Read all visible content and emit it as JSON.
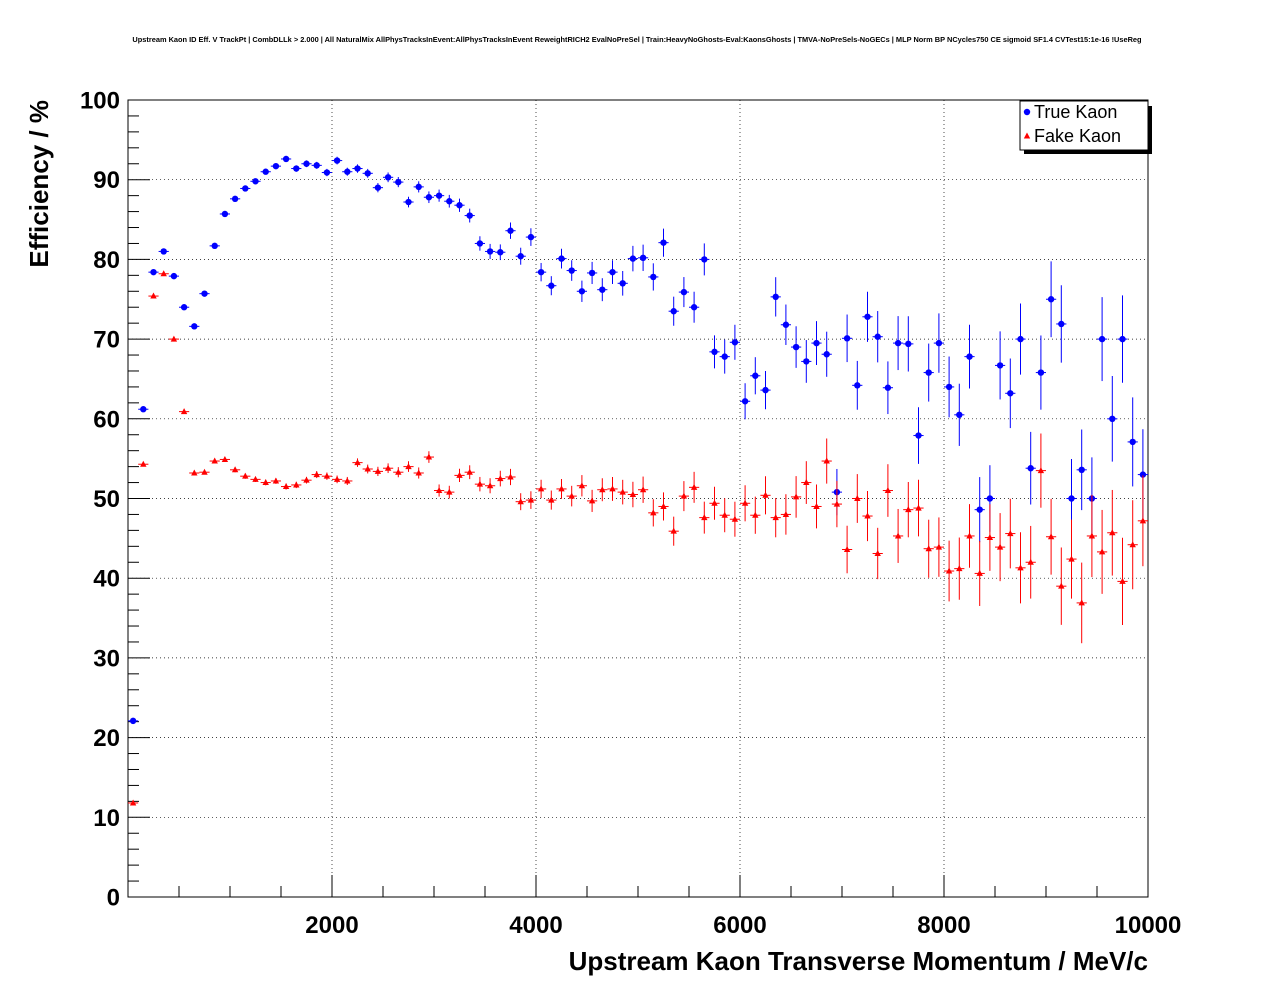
{
  "chart_data": {
    "type": "scatter",
    "title": "Upstream Kaon ID Eff. V TrackPt | CombDLLk > 2.000 | All NaturalMix AllPhysTracksInEvent:AllPhysTracksInEvent ReweightRICH2 EvalNoPreSel | Train:HeavyNoGhosts-Eval:KaonsGhosts | TMVA-NoPreSels-NoGECs | MLP Norm BP NCycles750 CE sigmoid SF1.4 CVTest15:1e-16 !UseReg",
    "xlabel": "Upstream Kaon Transverse Momentum / MeV/c",
    "ylabel": "Efficiency / %",
    "xlim": [
      0,
      10000
    ],
    "ylim": [
      0,
      100
    ],
    "x_ticks": [
      2000,
      4000,
      6000,
      8000,
      10000
    ],
    "y_ticks": [
      0,
      10,
      20,
      30,
      40,
      50,
      60,
      70,
      80,
      90,
      100
    ],
    "grid": true,
    "legend_position": "top-right",
    "series": [
      {
        "name": "True Kaon",
        "color": "#0000ff",
        "marker": "circle",
        "x": [
          50,
          150,
          250,
          350,
          450,
          550,
          650,
          750,
          850,
          950,
          1050,
          1150,
          1250,
          1350,
          1450,
          1550,
          1650,
          1750,
          1850,
          1950,
          2050,
          2150,
          2250,
          2350,
          2450,
          2550,
          2650,
          2750,
          2850,
          2950,
          3050,
          3150,
          3250,
          3350,
          3450,
          3550,
          3650,
          3750,
          3850,
          3950,
          4050,
          4150,
          4250,
          4350,
          4450,
          4550,
          4650,
          4750,
          4850,
          4950,
          5050,
          5150,
          5250,
          5350,
          5450,
          5550,
          5650,
          5750,
          5850,
          5950,
          6050,
          6150,
          6250,
          6350,
          6450,
          6550,
          6650,
          6750,
          6850,
          6950,
          7050,
          7150,
          7250,
          7350,
          7450,
          7550,
          7650,
          7750,
          7850,
          7950,
          8050,
          8150,
          8250,
          8350,
          8450,
          8550,
          8650,
          8750,
          8850,
          8950,
          9050,
          9150,
          9250,
          9350,
          9450,
          9550,
          9650,
          9750,
          9850,
          9950
        ],
        "y": [
          22.1,
          61.2,
          78.4,
          81.0,
          77.9,
          74.0,
          71.6,
          75.7,
          81.7,
          85.7,
          87.6,
          88.9,
          89.8,
          91.0,
          91.7,
          92.6,
          91.4,
          92.0,
          91.8,
          90.9,
          92.4,
          91.0,
          91.4,
          90.8,
          89.0,
          90.3,
          89.7,
          87.2,
          89.1,
          87.8,
          88.0,
          87.3,
          86.8,
          85.5,
          82.0,
          81.0,
          80.9,
          83.6,
          80.4,
          82.8,
          78.4,
          76.7,
          80.1,
          78.6,
          76.0,
          78.3,
          76.2,
          78.4,
          77.0,
          80.1,
          80.2,
          77.8,
          82.1,
          73.5,
          75.9,
          74.0,
          80.0,
          68.4,
          67.8,
          69.6,
          62.2,
          65.4,
          63.6,
          75.3,
          71.8,
          69.0,
          67.2,
          69.5,
          68.1,
          50.8,
          70.1,
          64.2,
          72.8,
          70.3,
          63.9,
          69.5,
          69.4,
          57.9,
          65.8,
          69.5,
          64.0,
          60.5,
          67.8,
          48.6,
          50.0,
          66.7,
          63.2,
          70.0,
          53.8,
          65.8,
          75.0,
          71.9,
          50.0,
          53.6,
          50.0,
          70.0,
          60.0,
          70.0,
          57.1,
          53.0
        ]
      },
      {
        "name": "Fake Kaon",
        "color": "#ff0000",
        "marker": "triangle",
        "x": [
          50,
          150,
          250,
          350,
          450,
          550,
          650,
          750,
          850,
          950,
          1050,
          1150,
          1250,
          1350,
          1450,
          1550,
          1650,
          1750,
          1850,
          1950,
          2050,
          2150,
          2250,
          2350,
          2450,
          2550,
          2650,
          2750,
          2850,
          2950,
          3050,
          3150,
          3250,
          3350,
          3450,
          3550,
          3650,
          3750,
          3850,
          3950,
          4050,
          4150,
          4250,
          4350,
          4450,
          4550,
          4650,
          4750,
          4850,
          4950,
          5050,
          5150,
          5250,
          5350,
          5450,
          5550,
          5650,
          5750,
          5850,
          5950,
          6050,
          6150,
          6250,
          6350,
          6450,
          6550,
          6650,
          6750,
          6850,
          6950,
          7050,
          7150,
          7250,
          7350,
          7450,
          7550,
          7650,
          7750,
          7850,
          7950,
          8050,
          8150,
          8250,
          8350,
          8450,
          8550,
          8650,
          8750,
          8850,
          8950,
          9050,
          9150,
          9250,
          9350,
          9450,
          9550,
          9650,
          9750,
          9850,
          9950
        ],
        "y": [
          11.8,
          54.3,
          75.4,
          78.2,
          70.0,
          60.9,
          53.2,
          53.3,
          54.7,
          54.9,
          53.6,
          52.8,
          52.4,
          52.0,
          52.2,
          51.5,
          51.7,
          52.3,
          53.0,
          52.8,
          52.4,
          52.2,
          54.5,
          53.7,
          53.4,
          53.8,
          53.3,
          54.0,
          53.2,
          55.2,
          51.0,
          50.8,
          52.9,
          53.3,
          51.8,
          51.6,
          52.5,
          52.7,
          49.6,
          49.8,
          51.2,
          49.8,
          51.2,
          50.3,
          51.6,
          49.7,
          51.1,
          51.2,
          50.8,
          50.5,
          51.1,
          48.2,
          49.0,
          45.9,
          50.3,
          51.4,
          47.6,
          49.4,
          47.9,
          47.4,
          49.4,
          47.9,
          50.4,
          47.6,
          48.0,
          50.2,
          52.0,
          49.0,
          54.7,
          49.3,
          43.6,
          50.0,
          47.8,
          43.1,
          51.0,
          45.3,
          48.6,
          48.8,
          43.7,
          43.9,
          40.9,
          41.2,
          45.3,
          40.6,
          45.1,
          43.9,
          45.6,
          41.3,
          42.0,
          53.5,
          45.2,
          39.0,
          42.4,
          36.9,
          45.3,
          43.3,
          45.7,
          39.6,
          44.2,
          47.2
        ]
      }
    ]
  }
}
